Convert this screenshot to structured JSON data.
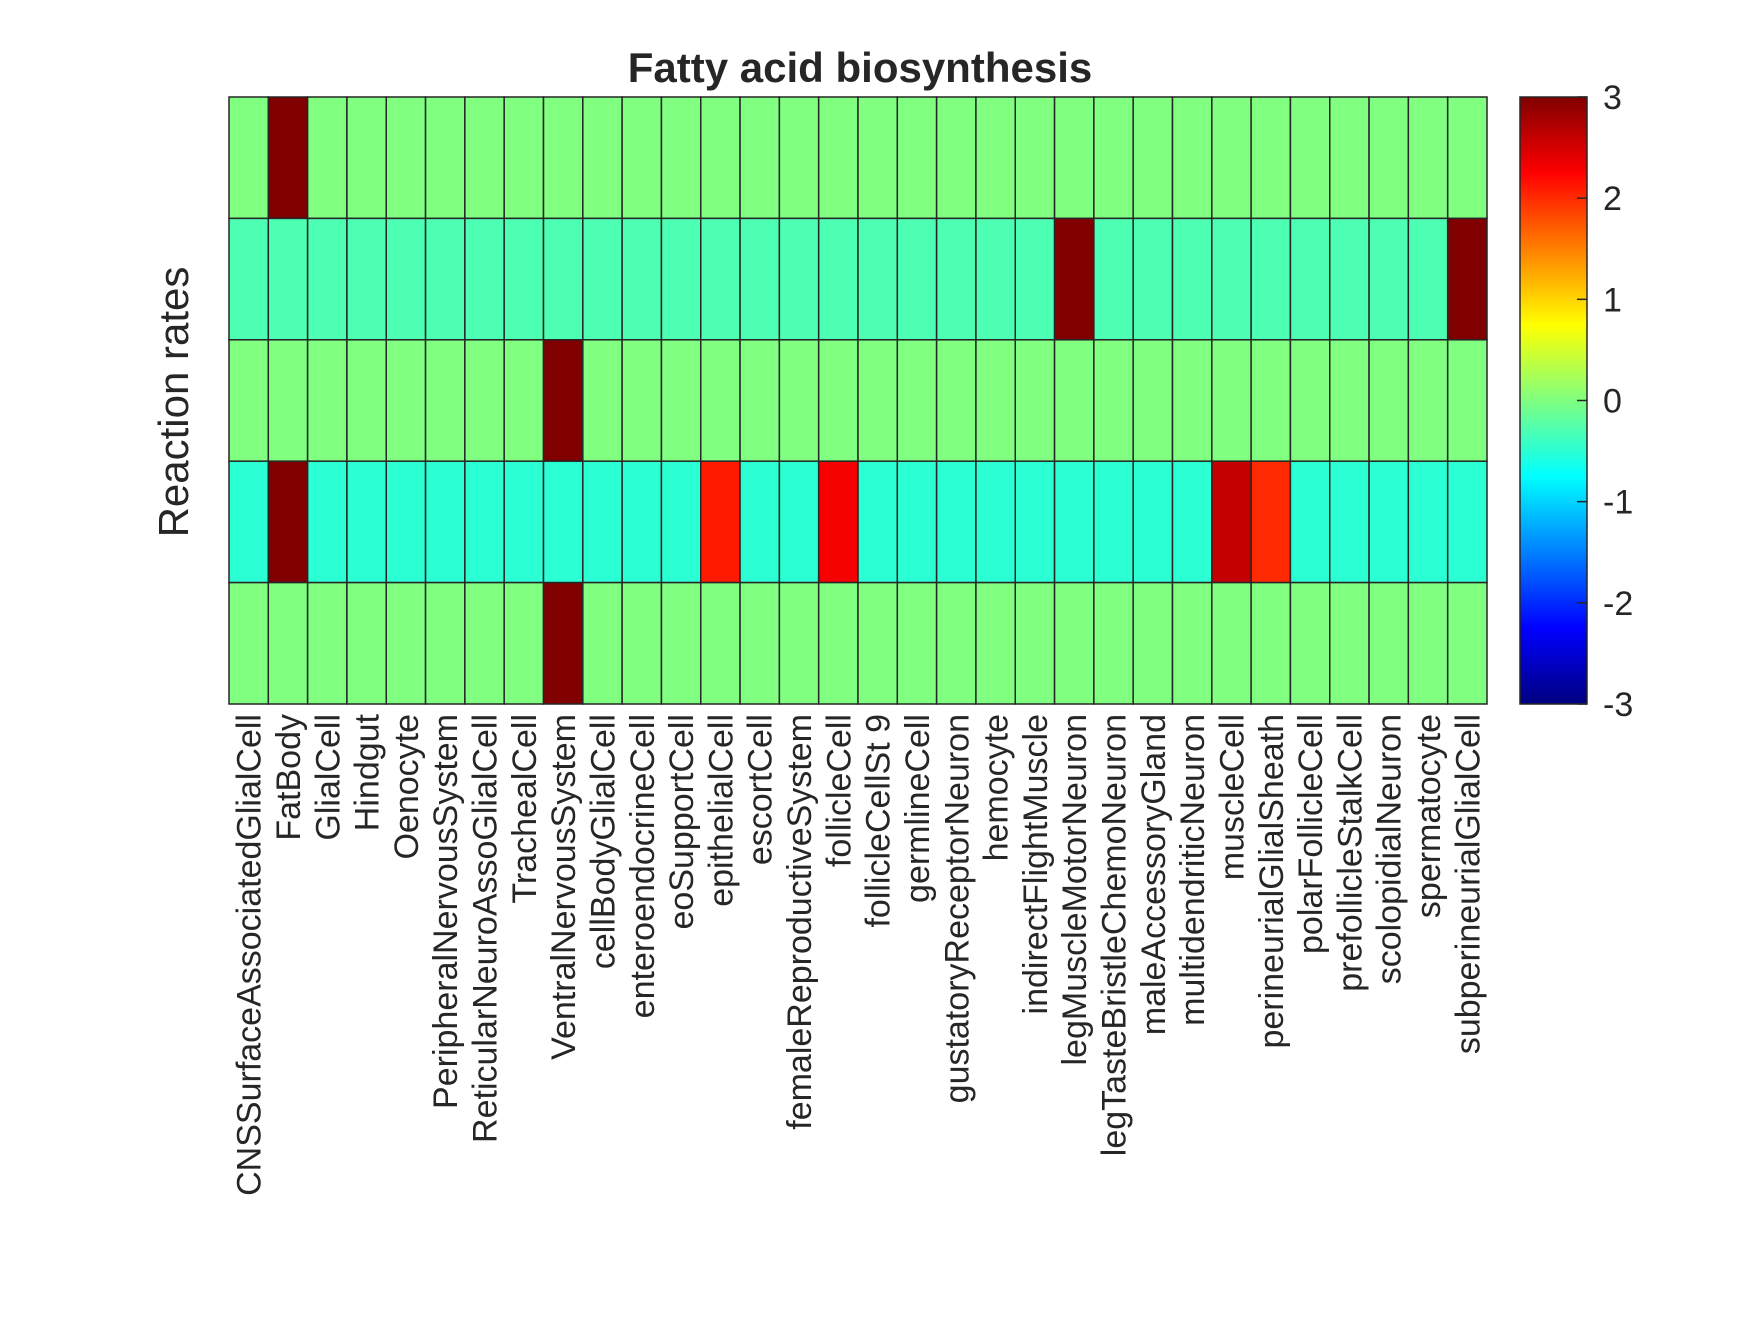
{
  "chart_data": {
    "type": "heatmap",
    "title": "Fatty acid biosynthesis",
    "xlabel": "",
    "ylabel": "Reaction rates",
    "categories": [
      "CNSSurfaceAssociatedGlialCell",
      "FatBody",
      "GlialCell",
      "Hindgut",
      "Oenocyte",
      "PeripheralNervousSystem",
      "ReticularNeuroAssoGlialCell",
      "TrachealCell",
      "VentralNervousSystem",
      "cellBodyGlialCell",
      "enteroendocrineCell",
      "eoSupportCell",
      "epithelialCell",
      "escortCell",
      "femaleReproductiveSystem",
      "follicleCell",
      "follicleCellSt 9",
      "germlineCell",
      "gustatoryReceptorNeuron",
      "hemocyte",
      "indirectFlightMuscle",
      "legMuscleMotorNeuron",
      "legTasteBristleChemoNeuron",
      "maleAccessoryGland",
      "multidendriticNeuron",
      "muscleCell",
      "perineurialGlialSheath",
      "polarFollicleCell",
      "prefollicleStalkCell",
      "scolopidialNeuron",
      "spermatocyte",
      "subperineurialGlialCell"
    ],
    "rows": 5,
    "values": [
      [
        0,
        3,
        0,
        0,
        0,
        0,
        0,
        0,
        0,
        0,
        0,
        0,
        0,
        0,
        0,
        0,
        0,
        0,
        0,
        0,
        0,
        0,
        0,
        0,
        0,
        0,
        0,
        0,
        0,
        0,
        0,
        0
      ],
      [
        -0.3,
        -0.3,
        -0.3,
        -0.3,
        -0.3,
        -0.3,
        -0.3,
        -0.3,
        -0.3,
        -0.3,
        -0.3,
        -0.3,
        -0.3,
        -0.3,
        -0.3,
        -0.3,
        -0.3,
        -0.3,
        -0.3,
        -0.3,
        -0.3,
        3,
        -0.3,
        -0.3,
        -0.3,
        -0.3,
        -0.3,
        -0.3,
        -0.3,
        -0.3,
        -0.3,
        3
      ],
      [
        0,
        0,
        0,
        0,
        0,
        0,
        0,
        0,
        3,
        0,
        0,
        0,
        0,
        0,
        0,
        0,
        0,
        0,
        0,
        0,
        0,
        0,
        0,
        0,
        0,
        0,
        0,
        0,
        0,
        0,
        0,
        0
      ],
      [
        -0.5,
        3,
        -0.5,
        -0.5,
        -0.5,
        -0.5,
        -0.5,
        -0.5,
        -0.5,
        -0.5,
        -0.5,
        -0.5,
        2.1,
        -0.5,
        -0.5,
        2.3,
        -0.5,
        -0.5,
        -0.5,
        -0.5,
        -0.5,
        -0.5,
        -0.5,
        -0.5,
        -0.5,
        2.6,
        2.0,
        -0.5,
        -0.5,
        -0.5,
        -0.5,
        -0.5
      ],
      [
        0,
        0,
        0,
        0,
        0,
        0,
        0,
        0,
        3,
        0,
        0,
        0,
        0,
        0,
        0,
        0,
        0,
        0,
        0,
        0,
        0,
        0,
        0,
        0,
        0,
        0,
        0,
        0,
        0,
        0,
        0,
        0
      ]
    ],
    "clim": [
      -3,
      3
    ],
    "colormap": "jet",
    "colorbar": {
      "ticks": [
        3,
        2,
        1,
        0,
        -1,
        -2,
        -3
      ],
      "tick_labels": [
        "3",
        "2",
        "1",
        "0",
        "-1",
        "-2",
        "-3"
      ]
    },
    "grid_color": "#262626"
  }
}
